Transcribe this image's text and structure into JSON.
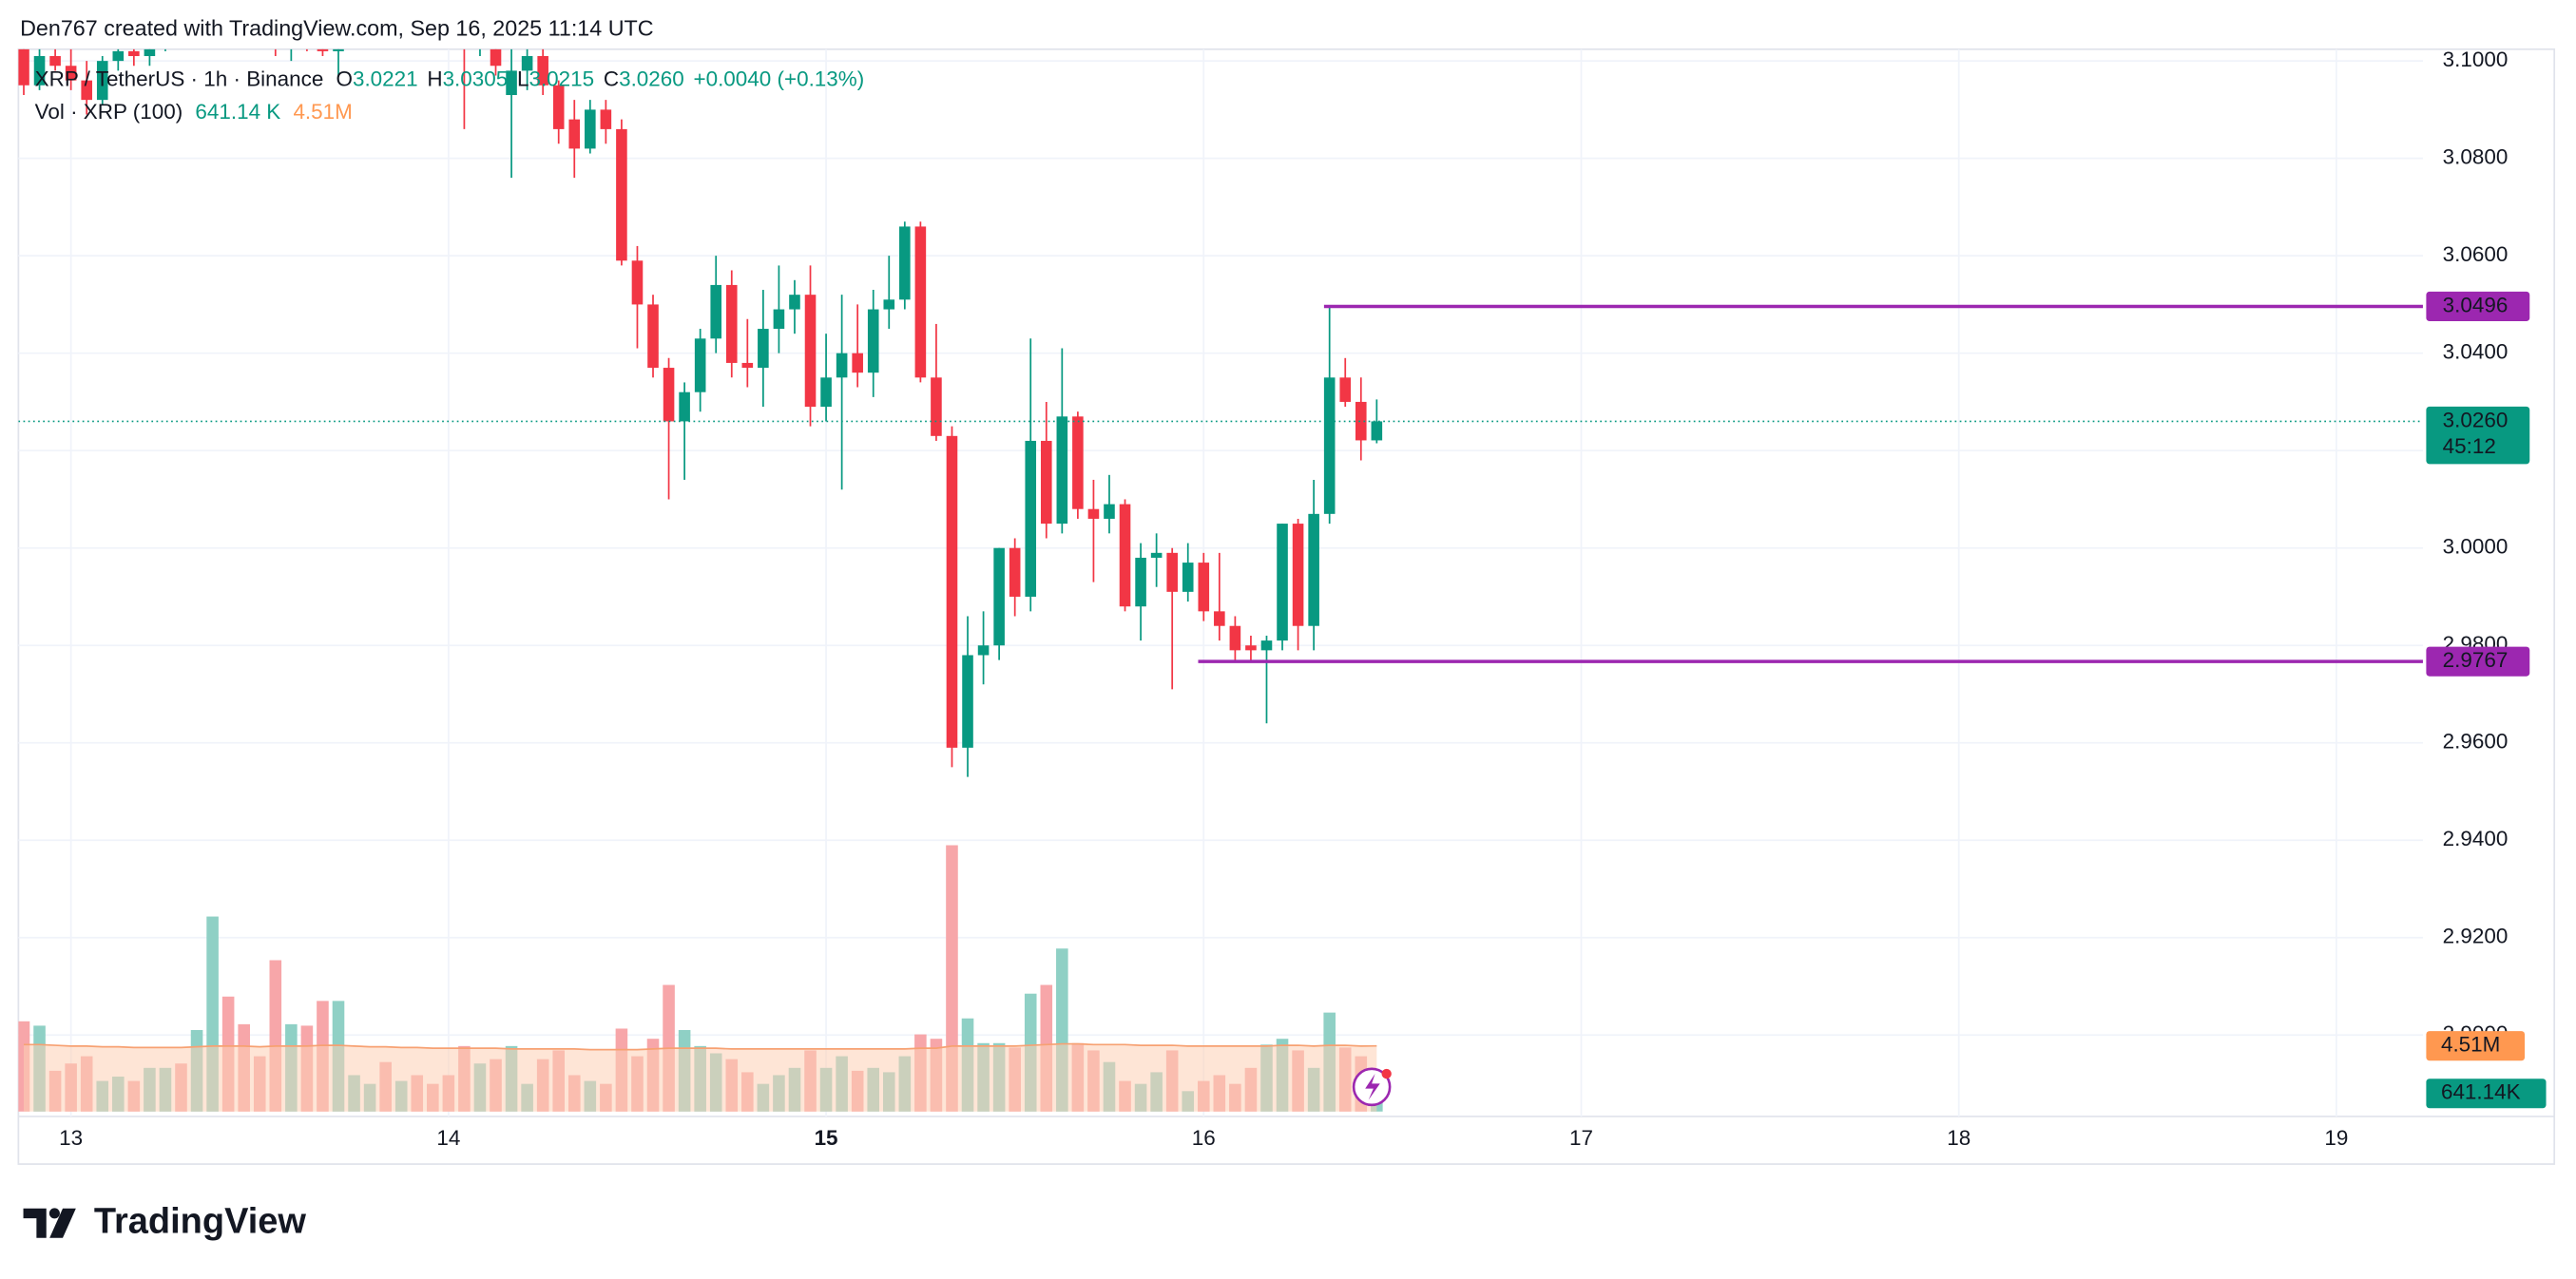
{
  "header": "Den767 created with TradingView.com, Sep 16, 2025 11:14 UTC",
  "footer": {
    "logo": "TradingView"
  },
  "chart_data": {
    "type": "candlestick",
    "legend": {
      "symbol": "XRP / TetherUS · 1h · Binance",
      "fields": [
        {
          "key": "O",
          "value": "3.0221"
        },
        {
          "key": "H",
          "value": "3.0305"
        },
        {
          "key": "L",
          "value": "3.0215"
        },
        {
          "key": "C",
          "value": "3.0260"
        }
      ],
      "change": "+0.0040 (+0.13%)"
    },
    "volume_legend": {
      "title": "Vol · XRP (100)",
      "value": "641.14 K",
      "ma": "4.51M"
    },
    "up_color": "#089981",
    "down_color": "#f23645",
    "vol_up_color": "#8fd0c5",
    "vol_down_color": "#f7a6a9",
    "ma_color": "#f7a172",
    "ma_fill": "#fdd0b4",
    "level_color": "#9c27b0",
    "grid": true,
    "xlim": [
      -3.34,
      149.5
    ],
    "xticks": [
      {
        "value": 0,
        "label": "13"
      },
      {
        "value": 24,
        "label": "14"
      },
      {
        "value": 48,
        "label": "15",
        "bold": true
      },
      {
        "value": 72,
        "label": "16"
      },
      {
        "value": 96,
        "label": "17"
      },
      {
        "value": 120,
        "label": "18"
      },
      {
        "value": 144,
        "label": "19"
      }
    ],
    "ylim": [
      2.8843,
      3.1024
    ],
    "yticks": [
      {
        "value": 3.1,
        "label": "3.1000"
      },
      {
        "value": 3.08,
        "label": "3.0800"
      },
      {
        "value": 3.06,
        "label": "3.0600"
      },
      {
        "value": 3.04,
        "label": "3.0400"
      },
      {
        "value": 3.02,
        "label": "3.0200"
      },
      {
        "value": 3.0,
        "label": "3.0000"
      },
      {
        "value": 2.98,
        "label": "2.9800"
      },
      {
        "value": 2.96,
        "label": "2.9600"
      },
      {
        "value": 2.94,
        "label": "2.9400"
      },
      {
        "value": 2.92,
        "label": "2.9200"
      },
      {
        "value": 2.9,
        "label": "2.9000"
      }
    ],
    "y2lim": [
      0,
      73000000
    ],
    "x": [
      -3,
      -2,
      -1,
      0,
      1,
      2,
      3,
      4,
      5,
      6,
      7,
      8,
      9,
      10,
      11,
      12,
      13,
      14,
      15,
      16,
      17,
      18,
      19,
      20,
      21,
      22,
      23,
      24,
      25,
      26,
      27,
      28,
      29,
      30,
      31,
      32,
      33,
      34,
      35,
      36,
      37,
      38,
      39,
      40,
      41,
      42,
      43,
      44,
      45,
      46,
      47,
      48,
      49,
      50,
      51,
      52,
      53,
      54,
      55,
      56,
      57,
      58,
      59,
      60,
      61,
      62,
      63,
      64,
      65,
      66,
      67,
      68,
      69,
      70,
      71,
      72,
      73,
      74,
      75,
      76,
      77,
      78,
      79,
      80,
      81,
      82,
      83
    ],
    "open": [
      3.106,
      3.095,
      3.101,
      3.099,
      3.096,
      3.092,
      3.1,
      3.102,
      3.101,
      3.104,
      3.107,
      3.105,
      3.108,
      3.11,
      3.107,
      3.106,
      3.104,
      3.103,
      3.105,
      3.104,
      3.102,
      3.106,
      3.109,
      3.111,
      3.11,
      3.112,
      3.11,
      3.109,
      3.108,
      3.104,
      3.108,
      3.093,
      3.098,
      3.101,
      3.095,
      3.088,
      3.082,
      3.09,
      3.086,
      3.059,
      3.05,
      3.037,
      3.026,
      3.032,
      3.043,
      3.054,
      3.038,
      3.037,
      3.045,
      3.049,
      3.052,
      3.029,
      3.035,
      3.04,
      3.036,
      3.049,
      3.051,
      3.066,
      3.035,
      3.023,
      2.959,
      2.978,
      2.98,
      3.0,
      2.99,
      3.022,
      3.005,
      3.027,
      3.008,
      3.006,
      3.009,
      2.988,
      2.998,
      2.999,
      2.991,
      2.997,
      2.987,
      2.984,
      2.98,
      2.979,
      2.981,
      3.005,
      2.984,
      3.007,
      3.035,
      3.03,
      3.0221
    ],
    "high": [
      3.108,
      3.103,
      3.104,
      3.103,
      3.1,
      3.101,
      3.104,
      3.106,
      3.105,
      3.109,
      3.11,
      3.109,
      3.112,
      3.113,
      3.11,
      3.109,
      3.108,
      3.107,
      3.109,
      3.107,
      3.108,
      3.111,
      3.113,
      3.115,
      3.114,
      3.116,
      3.113,
      3.114,
      3.112,
      3.11,
      3.11,
      3.103,
      3.104,
      3.104,
      3.096,
      3.092,
      3.092,
      3.092,
      3.088,
      3.062,
      3.052,
      3.039,
      3.034,
      3.045,
      3.06,
      3.057,
      3.047,
      3.053,
      3.058,
      3.055,
      3.058,
      3.044,
      3.052,
      3.05,
      3.053,
      3.06,
      3.067,
      3.067,
      3.046,
      3.025,
      2.986,
      2.987,
      3.0,
      3.002,
      3.043,
      3.03,
      3.041,
      3.028,
      3.014,
      3.015,
      3.01,
      3.001,
      3.003,
      3.0,
      3.001,
      2.999,
      2.999,
      2.986,
      2.982,
      2.982,
      3.005,
      3.006,
      3.014,
      3.0496,
      3.039,
      3.035,
      3.0305
    ],
    "low": [
      3.093,
      3.094,
      3.098,
      3.094,
      3.089,
      3.091,
      3.098,
      3.099,
      3.099,
      3.102,
      3.103,
      3.103,
      3.105,
      3.106,
      3.104,
      3.103,
      3.101,
      3.1,
      3.102,
      3.101,
      3.097,
      3.104,
      3.107,
      3.108,
      3.107,
      3.109,
      3.106,
      3.106,
      3.086,
      3.101,
      3.097,
      3.076,
      3.094,
      3.093,
      3.083,
      3.076,
      3.081,
      3.083,
      3.058,
      3.041,
      3.035,
      3.01,
      3.014,
      3.028,
      3.04,
      3.035,
      3.033,
      3.029,
      3.04,
      3.044,
      3.025,
      3.026,
      3.012,
      3.033,
      3.031,
      3.045,
      3.049,
      3.034,
      3.022,
      2.955,
      2.953,
      2.972,
      2.977,
      2.986,
      2.987,
      3.002,
      3.003,
      3.006,
      2.993,
      3.003,
      2.987,
      2.981,
      2.992,
      2.971,
      2.989,
      2.985,
      2.981,
      2.977,
      2.977,
      2.964,
      2.979,
      2.979,
      2.979,
      3.005,
      3.029,
      3.018,
      3.0215
    ],
    "close": [
      3.095,
      3.101,
      3.099,
      3.096,
      3.092,
      3.1,
      3.102,
      3.101,
      3.104,
      3.107,
      3.105,
      3.108,
      3.11,
      3.107,
      3.106,
      3.104,
      3.103,
      3.105,
      3.104,
      3.102,
      3.106,
      3.109,
      3.111,
      3.11,
      3.112,
      3.11,
      3.109,
      3.108,
      3.104,
      3.108,
      3.099,
      3.098,
      3.101,
      3.095,
      3.086,
      3.082,
      3.09,
      3.086,
      3.059,
      3.05,
      3.037,
      3.026,
      3.032,
      3.043,
      3.054,
      3.038,
      3.037,
      3.045,
      3.049,
      3.052,
      3.029,
      3.035,
      3.04,
      3.036,
      3.049,
      3.051,
      3.066,
      3.035,
      3.023,
      2.959,
      2.978,
      2.98,
      3.0,
      2.99,
      3.022,
      3.005,
      3.027,
      3.008,
      3.006,
      3.009,
      2.988,
      2.998,
      2.999,
      2.991,
      2.997,
      2.987,
      2.984,
      2.979,
      2.979,
      2.981,
      3.005,
      2.984,
      3.007,
      3.035,
      3.03,
      3.0221,
      3.026
    ],
    "volume": [
      6200000,
      5900000,
      2800000,
      3300000,
      3800000,
      2100000,
      2400000,
      2100000,
      3000000,
      3000000,
      3300000,
      5600000,
      13400000,
      7900000,
      6000000,
      3800000,
      10400000,
      6000000,
      5900000,
      7600000,
      7600000,
      2500000,
      1900000,
      3400000,
      2100000,
      2500000,
      1900000,
      2500000,
      4500000,
      3300000,
      3600000,
      4500000,
      1900000,
      3600000,
      4200000,
      2500000,
      2100000,
      1900000,
      5700000,
      3800000,
      5000000,
      8700000,
      5600000,
      4500000,
      4000000,
      3600000,
      2700000,
      1900000,
      2500000,
      3000000,
      4200000,
      3000000,
      3800000,
      2800000,
      3000000,
      2700000,
      3800000,
      5300000,
      5000000,
      18300000,
      6400000,
      4700000,
      4700000,
      4400000,
      8100000,
      8700000,
      11200000,
      4700000,
      4200000,
      3400000,
      2100000,
      1900000,
      2700000,
      4200000,
      1400000,
      2100000,
      2500000,
      1900000,
      3000000,
      4600000,
      5000000,
      4200000,
      3000000,
      6800000,
      4400000,
      3800000,
      641140
    ],
    "volume_ma": [
      4600000,
      4600000,
      4550000,
      4500000,
      4500000,
      4450000,
      4450000,
      4400000,
      4400000,
      4400000,
      4400000,
      4450000,
      4500000,
      4500000,
      4500000,
      4450000,
      4500000,
      4500000,
      4500000,
      4550000,
      4550000,
      4500000,
      4450000,
      4450000,
      4400000,
      4400000,
      4350000,
      4350000,
      4350000,
      4350000,
      4350000,
      4300000,
      4300000,
      4300000,
      4300000,
      4300000,
      4250000,
      4250000,
      4250000,
      4250000,
      4300000,
      4350000,
      4350000,
      4350000,
      4350000,
      4300000,
      4300000,
      4300000,
      4300000,
      4300000,
      4300000,
      4300000,
      4300000,
      4300000,
      4300000,
      4300000,
      4300000,
      4350000,
      4350000,
      4500000,
      4500000,
      4500000,
      4500000,
      4500000,
      4550000,
      4600000,
      4650000,
      4650000,
      4600000,
      4600000,
      4600000,
      4550000,
      4550000,
      4550000,
      4500000,
      4500000,
      4500000,
      4500000,
      4500000,
      4500000,
      4550000,
      4550000,
      4500000,
      4550000,
      4550000,
      4500000,
      4510000
    ],
    "levels": [
      {
        "value": 3.0496,
        "from_x": 80
      },
      {
        "value": 2.9767,
        "from_x": 72
      }
    ],
    "last_price": {
      "value": 3.026,
      "label": "3.0260"
    },
    "countdown": "45:12",
    "volume_badges": {
      "ma": {
        "value": 4510000,
        "label": "4.51M"
      },
      "value": {
        "value": 641140,
        "label": "641.14K"
      }
    }
  }
}
